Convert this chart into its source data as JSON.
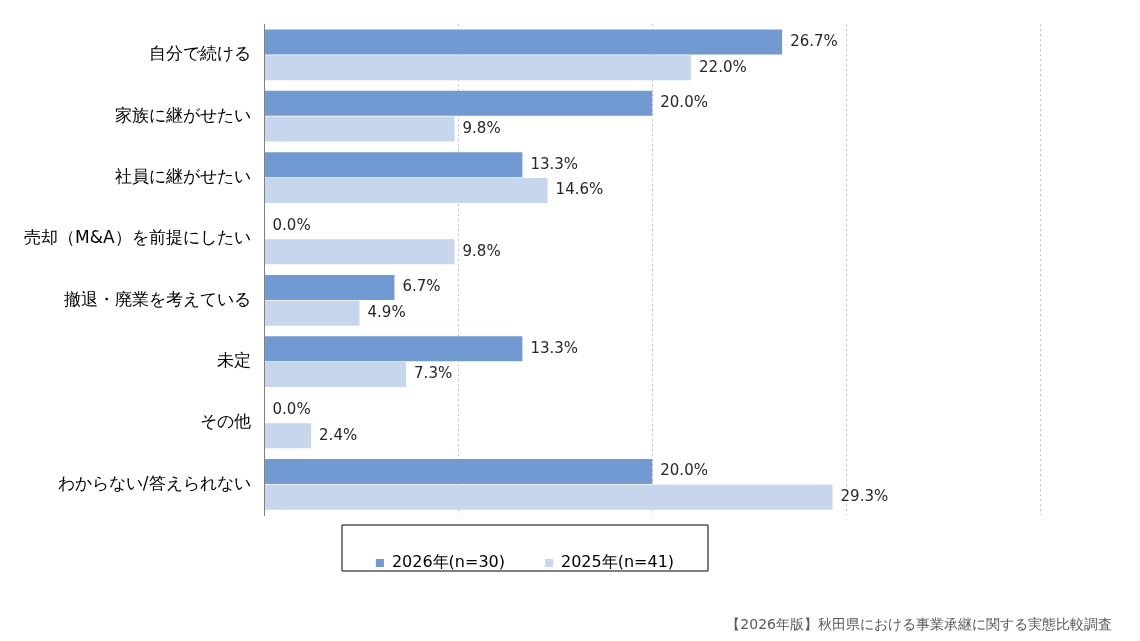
{
  "chart_data": {
    "type": "bar",
    "orientation": "horizontal",
    "categories": [
      "自分で続ける",
      "家族に継がせたい",
      "社員に継がせたい",
      "売却（M&A）を前提にしたい",
      "撤退・廃業を考えている",
      "未定",
      "その他",
      "わからない/答えられない"
    ],
    "series": [
      {
        "name": "2026年(n=30)",
        "color": "#7199d2",
        "values": [
          26.7,
          20.0,
          13.3,
          0.0,
          6.7,
          13.3,
          0.0,
          20.0
        ],
        "value_labels": [
          "26.7%",
          "20.0%",
          "13.3%",
          "0.0%",
          "6.7%",
          "13.3%",
          "0.0%",
          "20.0%"
        ]
      },
      {
        "name": "2025年(n=41)",
        "color": "#c6d6ed",
        "values": [
          22.0,
          9.8,
          14.6,
          9.8,
          4.9,
          7.3,
          2.4,
          29.3
        ],
        "value_labels": [
          "22.0%",
          "9.8%",
          "14.6%",
          "9.8%",
          "4.9%",
          "7.3%",
          "2.4%",
          "29.3%"
        ]
      }
    ],
    "xlim": [
      0,
      40
    ],
    "xticks": [
      {
        "value": 0,
        "label": null
      },
      {
        "value": 10,
        "label": null
      },
      {
        "value": 20,
        "label": null
      },
      {
        "value": 30,
        "label": null
      },
      {
        "value": 40,
        "label": null
      }
    ],
    "tick_labels": "y",
    "grid": "x",
    "legend": "bottom",
    "annotations": [
      "【2026年版】秋田県における事業承継に関する実態比較調査"
    ]
  }
}
